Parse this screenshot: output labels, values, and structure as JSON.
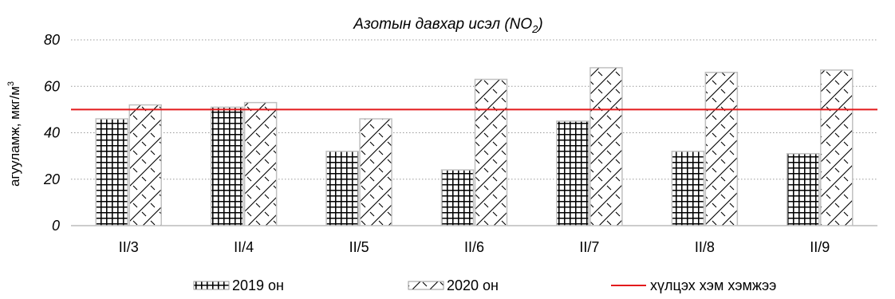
{
  "chart_data": {
    "type": "bar",
    "title_main": "Азотын давхар исэл (NO",
    "title_sub": "2",
    "title_end": ")",
    "ylabel_main": "агууламж, мкг/м",
    "ylabel_sup": "3",
    "xlabel": "",
    "categories": [
      "II/3",
      "II/4",
      "II/5",
      "II/6",
      "II/7",
      "II/8",
      "II/9"
    ],
    "ylim": [
      0,
      80
    ],
    "yticks": [
      "0",
      "20",
      "40",
      "60",
      "80"
    ],
    "grid": true,
    "legend_position": "bottom",
    "series": [
      {
        "name": "2019 он",
        "values": [
          46,
          51,
          32,
          24,
          45,
          32,
          31
        ],
        "pattern": "grid",
        "stroke": "#000000"
      },
      {
        "name": "2020 он",
        "values": [
          52,
          53,
          46,
          63,
          68,
          66,
          67
        ],
        "pattern": "diagonal-hatch",
        "stroke": "#000000"
      }
    ],
    "reference_line": {
      "name": "хүлцэх хэм хэмжээ",
      "value": 50,
      "color": "#e31a1c"
    }
  }
}
